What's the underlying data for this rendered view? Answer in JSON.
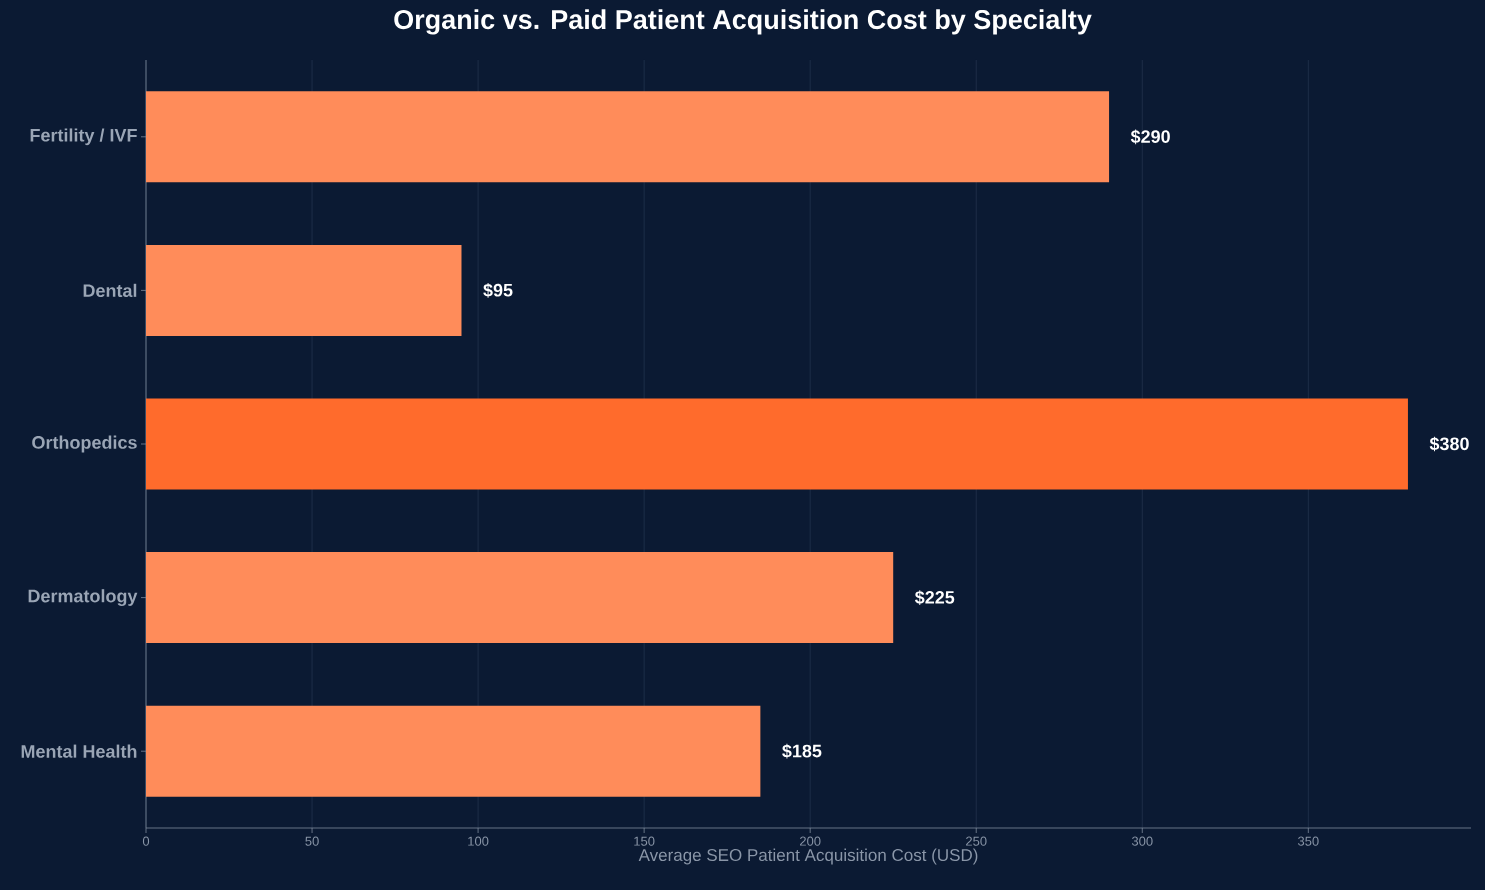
{
  "chart_data": {
    "type": "bar",
    "orientation": "horizontal",
    "title": "Organic vs. Paid Patient Acquisition Cost by Specialty",
    "xlabel": "Average SEO Patient Acquisition Cost (USD)",
    "categories": [
      "Fertility / IVF",
      "Dental",
      "Orthopedics",
      "Dermatology",
      "Mental Health"
    ],
    "values": [
      290,
      95,
      380,
      225,
      185
    ],
    "colors": [
      "#ff8c5a",
      "#ff8c5a",
      "#ff6b2c",
      "#ff8c5a",
      "#ff8c5a"
    ],
    "value_labels": [
      "$290",
      "$95",
      "$380",
      "$225",
      "$185"
    ],
    "xlim": [
      0,
      399
    ],
    "xticks": [
      0,
      50,
      100,
      150,
      200,
      250,
      300,
      350
    ],
    "grid": "x"
  }
}
